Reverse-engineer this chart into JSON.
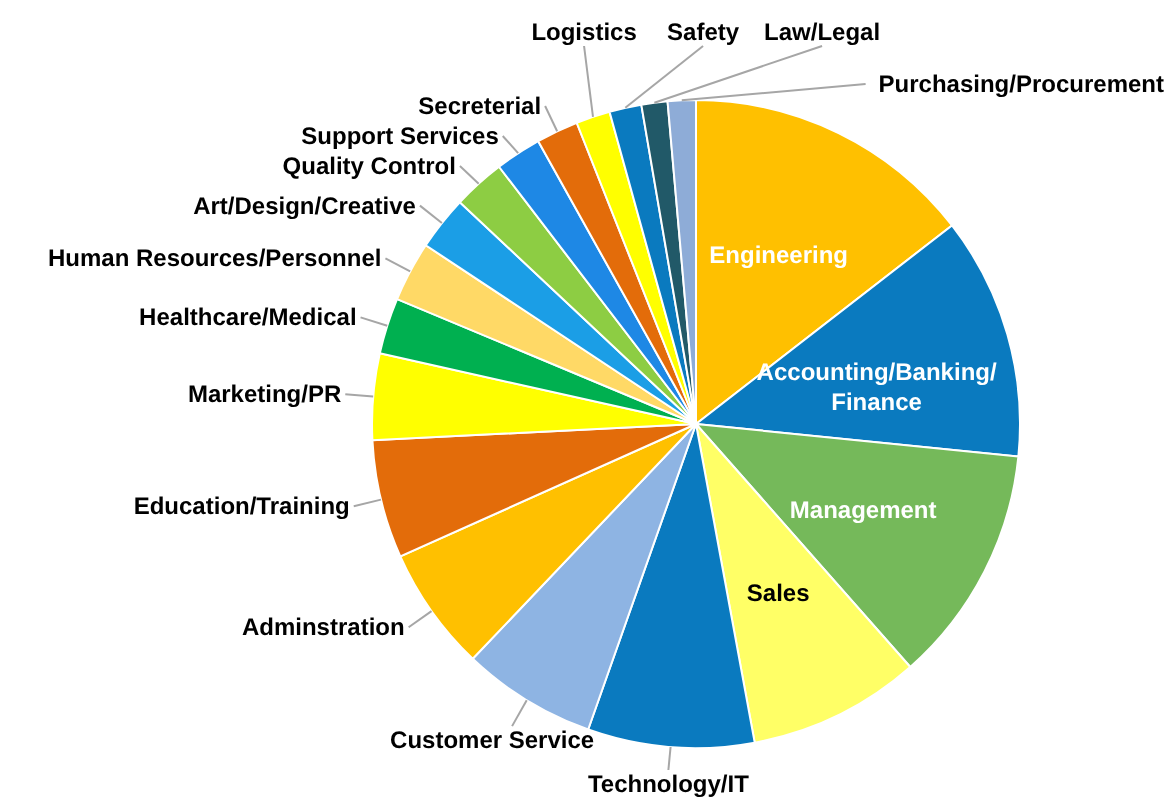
{
  "chart_data": {
    "type": "pie",
    "categories": [
      "Engineering",
      "Accounting/Banking/Finance",
      "Management",
      "Sales",
      "Technology/IT",
      "Customer Service",
      "Adminstration",
      "Education/Training",
      "Marketing/PR",
      "Healthcare/Medical",
      "Human Resources/Personnel",
      "Art/Design/Creative",
      "Quality Control",
      "Support Services",
      "Secreterial",
      "Logistics",
      "Safety",
      "Law/Legal",
      "Purchasing/Procurement"
    ],
    "values": [
      14.5,
      12.1,
      11.9,
      8.6,
      8.3,
      6.7,
      6.2,
      5.9,
      4.3,
      2.8,
      3.0,
      2.7,
      2.6,
      2.3,
      2.1,
      1.7,
      1.6,
      1.3,
      1.4
    ],
    "colors": [
      "#ffc000",
      "#0a7abf",
      "#75b95a",
      "#ffff66",
      "#0a7abf",
      "#8eb4e3",
      "#ffc000",
      "#e36c0a",
      "#ffff00",
      "#00b050",
      "#ffd966",
      "#1b9ee6",
      "#8dcd43",
      "#1e88e5",
      "#e36c0a",
      "#ffff00",
      "#0a7abf",
      "#215968",
      "#8eacd7"
    ]
  }
}
